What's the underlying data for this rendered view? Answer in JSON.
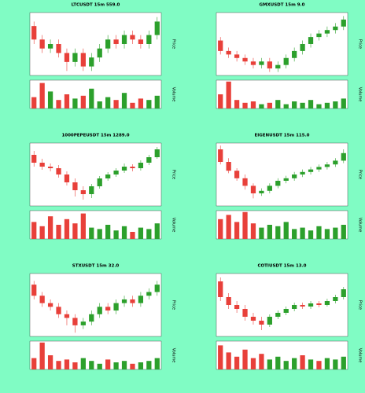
{
  "chart_data": [
    {
      "type": "candlestick",
      "title": "LTCUSDT 15m 559.0",
      "ylabel": "Price",
      "y2label": "Volume",
      "up_color": "#2ca02c",
      "down_color": "#e8403a",
      "open": [
        66.9,
        66.6,
        66.4,
        66.5,
        66.3,
        66.1,
        66.3,
        66.0,
        66.2,
        66.4,
        66.6,
        66.5,
        66.7,
        66.6,
        66.5,
        66.7
      ],
      "high": [
        67.0,
        66.7,
        66.6,
        66.6,
        66.4,
        66.4,
        66.4,
        66.3,
        66.5,
        66.7,
        66.7,
        66.8,
        66.8,
        66.7,
        66.8,
        67.1
      ],
      "low": [
        66.5,
        66.3,
        66.3,
        66.2,
        65.9,
        66.0,
        65.9,
        65.9,
        66.1,
        66.3,
        66.4,
        66.4,
        66.5,
        66.4,
        66.4,
        66.6
      ],
      "close": [
        66.6,
        66.4,
        66.5,
        66.3,
        66.1,
        66.3,
        66.0,
        66.2,
        66.4,
        66.6,
        66.5,
        66.7,
        66.6,
        66.5,
        66.7,
        67.0
      ],
      "volume": [
        40,
        90,
        60,
        30,
        50,
        35,
        45,
        70,
        25,
        40,
        30,
        55,
        20,
        35,
        30,
        45
      ],
      "ylim": [
        65.8,
        67.2
      ],
      "y2lim": [
        0,
        100
      ]
    },
    {
      "type": "candlestick",
      "title": "GMXUSDT 15m 9.0",
      "ylabel": "Price",
      "y2label": "Volume",
      "up_color": "#2ca02c",
      "down_color": "#e8403a",
      "open": [
        20.9,
        20.6,
        20.5,
        20.4,
        20.3,
        20.2,
        20.3,
        20.1,
        20.2,
        20.4,
        20.6,
        20.8,
        21.0,
        21.1,
        21.2,
        21.3
      ],
      "high": [
        21.0,
        20.7,
        20.6,
        20.5,
        20.4,
        20.4,
        20.4,
        20.3,
        20.5,
        20.7,
        20.9,
        21.1,
        21.2,
        21.3,
        21.4,
        21.6
      ],
      "low": [
        20.5,
        20.4,
        20.3,
        20.2,
        20.1,
        20.1,
        20.0,
        20.0,
        20.1,
        20.3,
        20.5,
        20.7,
        20.9,
        21.0,
        21.1,
        21.2
      ],
      "close": [
        20.6,
        20.5,
        20.4,
        20.3,
        20.2,
        20.3,
        20.1,
        20.2,
        20.4,
        20.6,
        20.8,
        21.0,
        21.1,
        21.2,
        21.3,
        21.5
      ],
      "volume": [
        50,
        95,
        30,
        20,
        25,
        15,
        20,
        30,
        15,
        25,
        20,
        30,
        15,
        20,
        25,
        35
      ],
      "ylim": [
        19.9,
        21.7
      ],
      "y2lim": [
        0,
        100
      ]
    },
    {
      "type": "candlestick",
      "title": "1000PEPEUSDT 15m 1289.0",
      "ylabel": "Price",
      "y2label": "Volume",
      "up_color": "#2ca02c",
      "down_color": "#e8403a",
      "open": [
        1.115,
        1.105,
        1.1,
        1.098,
        1.09,
        1.08,
        1.07,
        1.065,
        1.075,
        1.085,
        1.09,
        1.095,
        1.1,
        1.098,
        1.105,
        1.112
      ],
      "high": [
        1.12,
        1.11,
        1.104,
        1.102,
        1.094,
        1.085,
        1.075,
        1.078,
        1.088,
        1.093,
        1.098,
        1.104,
        1.103,
        1.108,
        1.115,
        1.125
      ],
      "low": [
        1.1,
        1.096,
        1.094,
        1.086,
        1.076,
        1.062,
        1.058,
        1.06,
        1.072,
        1.082,
        1.087,
        1.092,
        1.094,
        1.095,
        1.102,
        1.11
      ],
      "close": [
        1.105,
        1.1,
        1.098,
        1.09,
        1.08,
        1.07,
        1.065,
        1.075,
        1.085,
        1.09,
        1.095,
        1.1,
        1.098,
        1.105,
        1.112,
        1.122
      ],
      "volume": [
        60,
        45,
        80,
        50,
        70,
        55,
        90,
        40,
        35,
        50,
        30,
        45,
        25,
        40,
        35,
        55
      ],
      "ylim": [
        1.05,
        1.13
      ],
      "y2lim": [
        0,
        100
      ]
    },
    {
      "type": "candlestick",
      "title": "EIGENUSDT 15m 115.0",
      "ylabel": "Price",
      "y2label": "Volume",
      "up_color": "#2ca02c",
      "down_color": "#e8403a",
      "open": [
        3.95,
        3.85,
        3.78,
        3.72,
        3.66,
        3.6,
        3.62,
        3.66,
        3.7,
        3.72,
        3.75,
        3.77,
        3.79,
        3.81,
        3.83,
        3.86
      ],
      "high": [
        3.98,
        3.88,
        3.8,
        3.75,
        3.68,
        3.64,
        3.68,
        3.72,
        3.74,
        3.77,
        3.79,
        3.81,
        3.83,
        3.85,
        3.88,
        3.95
      ],
      "low": [
        3.83,
        3.76,
        3.7,
        3.63,
        3.56,
        3.58,
        3.6,
        3.64,
        3.68,
        3.7,
        3.73,
        3.75,
        3.77,
        3.79,
        3.81,
        3.84
      ],
      "close": [
        3.85,
        3.78,
        3.72,
        3.66,
        3.6,
        3.62,
        3.66,
        3.7,
        3.72,
        3.75,
        3.77,
        3.79,
        3.81,
        3.83,
        3.86,
        3.92
      ],
      "volume": [
        70,
        85,
        60,
        95,
        55,
        40,
        50,
        45,
        60,
        35,
        40,
        30,
        45,
        35,
        40,
        50
      ],
      "ylim": [
        3.5,
        4.0
      ],
      "y2lim": [
        0,
        100
      ]
    },
    {
      "type": "candlestick",
      "title": "STXUSDT 15m 32.0",
      "ylabel": "Price",
      "y2label": "Volume",
      "up_color": "#2ca02c",
      "down_color": "#e8403a",
      "open": [
        1.72,
        1.69,
        1.67,
        1.66,
        1.64,
        1.63,
        1.61,
        1.62,
        1.64,
        1.66,
        1.65,
        1.67,
        1.68,
        1.67,
        1.69,
        1.7
      ],
      "high": [
        1.73,
        1.7,
        1.68,
        1.67,
        1.65,
        1.64,
        1.63,
        1.65,
        1.67,
        1.67,
        1.68,
        1.69,
        1.69,
        1.7,
        1.71,
        1.73
      ],
      "low": [
        1.68,
        1.66,
        1.65,
        1.63,
        1.61,
        1.59,
        1.6,
        1.61,
        1.63,
        1.64,
        1.64,
        1.66,
        1.66,
        1.66,
        1.68,
        1.69
      ],
      "close": [
        1.69,
        1.67,
        1.66,
        1.64,
        1.63,
        1.61,
        1.62,
        1.64,
        1.66,
        1.65,
        1.67,
        1.68,
        1.67,
        1.69,
        1.7,
        1.72
      ],
      "volume": [
        40,
        95,
        50,
        30,
        35,
        25,
        40,
        30,
        20,
        35,
        25,
        30,
        20,
        25,
        30,
        40
      ],
      "ylim": [
        1.58,
        1.75
      ],
      "y2lim": [
        0,
        100
      ]
    },
    {
      "type": "candlestick",
      "title": "COTIUSDT 15m 13.0",
      "ylabel": "Price",
      "y2label": "Volume",
      "up_color": "#2ca02c",
      "down_color": "#e8403a",
      "open": [
        0.104,
        0.102,
        0.101,
        0.1005,
        0.0995,
        0.099,
        0.0985,
        0.0995,
        0.1,
        0.1005,
        0.101,
        0.1008,
        0.1012,
        0.101,
        0.1015,
        0.102
      ],
      "high": [
        0.1045,
        0.1025,
        0.1015,
        0.101,
        0.1,
        0.0995,
        0.0998,
        0.1003,
        0.1008,
        0.1013,
        0.1013,
        0.1015,
        0.1015,
        0.1018,
        0.1023,
        0.1033
      ],
      "low": [
        0.1015,
        0.1005,
        0.1,
        0.099,
        0.0985,
        0.0978,
        0.0982,
        0.0992,
        0.0997,
        0.1002,
        0.1005,
        0.1005,
        0.1007,
        0.1008,
        0.1012,
        0.1017
      ],
      "close": [
        0.102,
        0.101,
        0.1005,
        0.0995,
        0.099,
        0.0985,
        0.0995,
        0.1,
        0.1005,
        0.101,
        0.1008,
        0.1012,
        0.101,
        0.1015,
        0.102,
        0.103
      ],
      "volume": [
        85,
        60,
        45,
        70,
        40,
        55,
        35,
        45,
        30,
        40,
        50,
        35,
        30,
        40,
        35,
        45
      ],
      "ylim": [
        0.097,
        0.105
      ],
      "y2lim": [
        0,
        100
      ]
    }
  ]
}
